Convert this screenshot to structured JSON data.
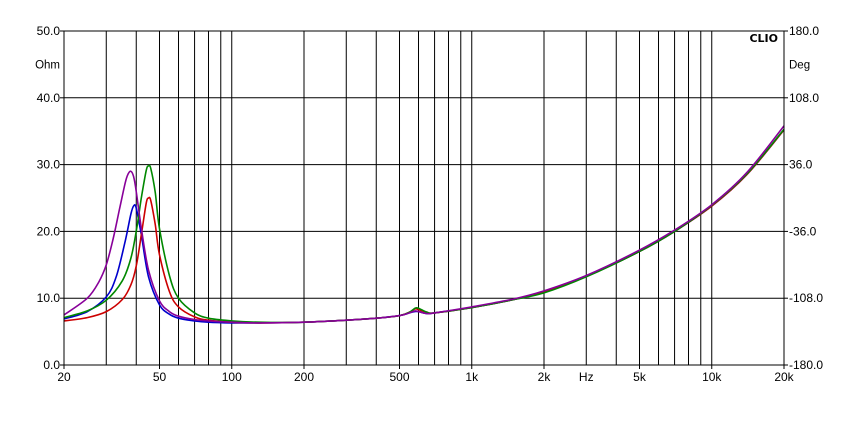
{
  "chart_data": {
    "type": "line",
    "brand": "CLIO",
    "title": "",
    "xlabel": "Hz",
    "ylabel_left": "Ohm",
    "ylabel_right": "Deg",
    "x_scale": "log",
    "xlim": [
      20,
      20000
    ],
    "ylim_left": [
      0,
      50
    ],
    "ylim_right": [
      -180,
      180
    ],
    "grid": true,
    "x_ticks": [
      {
        "value": 20,
        "label": "20"
      },
      {
        "value": 50,
        "label": "50"
      },
      {
        "value": 100,
        "label": "100"
      },
      {
        "value": 200,
        "label": "200"
      },
      {
        "value": 500,
        "label": "500"
      },
      {
        "value": 1000,
        "label": "1k"
      },
      {
        "value": 2000,
        "label": "2k"
      },
      {
        "value": 5000,
        "label": "5k"
      },
      {
        "value": 10000,
        "label": "10k"
      },
      {
        "value": 20000,
        "label": "20k"
      }
    ],
    "x_unit_at": 3000,
    "y_left_ticks": [
      "0.0",
      "10.0",
      "20.0",
      "30.0",
      "40.0",
      "50.0"
    ],
    "y_right_ticks": [
      "-180.0",
      "-108.0",
      "-36.0",
      "36.0",
      "108.0",
      "180.0"
    ],
    "series": [
      {
        "color": "#0000cc",
        "x": [
          20,
          25,
          30,
          33,
          36,
          38,
          39,
          40,
          42,
          45,
          50,
          55,
          60,
          70,
          80,
          100,
          130,
          200,
          300,
          400,
          500,
          550,
          580,
          600,
          650,
          700,
          1000,
          1500,
          2000,
          3000,
          5000,
          7000,
          10000,
          14000,
          20000
        ],
        "y": [
          6.9,
          8.0,
          10.2,
          13.2,
          18.6,
          22.6,
          23.8,
          23.5,
          19.5,
          13.2,
          9.0,
          7.6,
          7.0,
          6.6,
          6.4,
          6.3,
          6.3,
          6.4,
          6.7,
          7.0,
          7.4,
          7.8,
          8.0,
          8.0,
          7.7,
          7.8,
          8.6,
          9.8,
          11.0,
          13.3,
          17.0,
          20.0,
          23.8,
          28.5,
          35.2
        ]
      },
      {
        "color": "#cc0000",
        "x": [
          20,
          25,
          30,
          35,
          38,
          40,
          42,
          44,
          45,
          46,
          48,
          50,
          55,
          60,
          70,
          80,
          100,
          130,
          200,
          300,
          400,
          500,
          550,
          580,
          600,
          650,
          700,
          1000,
          1500,
          2000,
          3000,
          5000,
          7000,
          10000,
          14000,
          20000
        ],
        "y": [
          6.6,
          7.1,
          8.0,
          9.8,
          12.0,
          14.8,
          19.5,
          24.2,
          25.0,
          24.6,
          21.0,
          16.5,
          11.0,
          8.7,
          7.2,
          6.7,
          6.4,
          6.3,
          6.4,
          6.7,
          7.0,
          7.4,
          7.9,
          8.4,
          8.3,
          7.9,
          7.8,
          8.6,
          9.8,
          11.0,
          13.3,
          17.0,
          20.0,
          23.8,
          28.5,
          35.2
        ]
      },
      {
        "color": "#008800",
        "x": [
          20,
          25,
          30,
          35,
          38,
          40,
          42,
          44,
          45,
          46,
          48,
          50,
          55,
          60,
          70,
          80,
          100,
          130,
          200,
          300,
          400,
          500,
          550,
          580,
          600,
          650,
          700,
          1000,
          1500,
          2000,
          3000,
          5000,
          7000,
          10000,
          14000,
          20000
        ],
        "y": [
          7.1,
          8.1,
          9.7,
          12.6,
          16.0,
          20.0,
          25.0,
          29.1,
          29.8,
          29.4,
          25.8,
          20.4,
          13.4,
          10.0,
          7.8,
          7.0,
          6.6,
          6.4,
          6.4,
          6.7,
          7.0,
          7.4,
          7.9,
          8.5,
          8.5,
          7.9,
          7.8,
          8.6,
          9.8,
          10.8,
          13.2,
          17.0,
          20.0,
          23.9,
          28.6,
          35.3
        ]
      },
      {
        "color": "#880099",
        "x": [
          20,
          25,
          28,
          30,
          32,
          34,
          36,
          37,
          38,
          39,
          40,
          42,
          45,
          50,
          55,
          60,
          70,
          80,
          100,
          130,
          200,
          300,
          400,
          500,
          550,
          580,
          600,
          650,
          700,
          1000,
          1500,
          2000,
          3000,
          5000,
          7000,
          10000,
          14000,
          20000
        ],
        "y": [
          7.5,
          10.0,
          12.5,
          15.0,
          18.8,
          23.2,
          27.3,
          28.6,
          29.0,
          28.2,
          26.0,
          20.5,
          14.2,
          9.6,
          8.0,
          7.3,
          6.8,
          6.6,
          6.4,
          6.3,
          6.4,
          6.7,
          7.0,
          7.4,
          7.8,
          8.1,
          8.0,
          7.7,
          7.8,
          8.7,
          9.9,
          11.1,
          13.4,
          17.2,
          20.2,
          24.0,
          28.8,
          35.8
        ]
      }
    ]
  }
}
